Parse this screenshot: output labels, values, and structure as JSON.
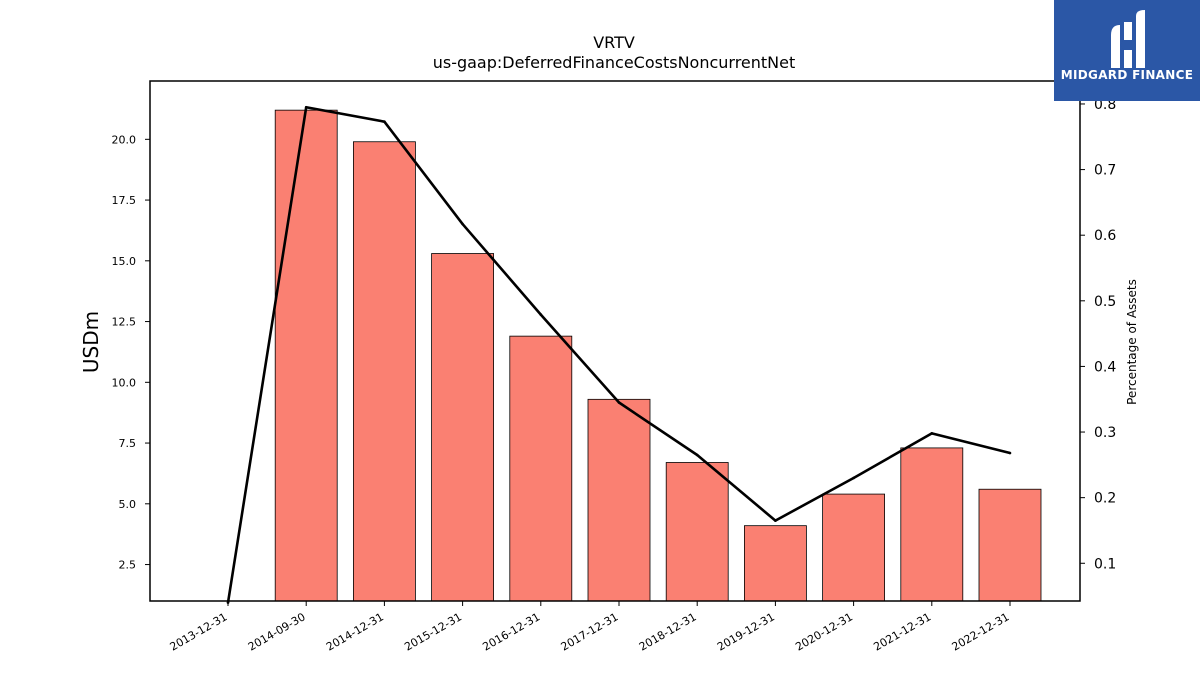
{
  "logo": {
    "text": "MIDGARD FINANCE",
    "background": "#2b57a6"
  },
  "chart_data": {
    "type": "bar",
    "title": "VRTV",
    "subtitle": "us-gaap:DeferredFinanceCostsNoncurrentNet",
    "ylabel": "USDm",
    "y2label": "Percentage of Assets",
    "categories": [
      "2013-12-31",
      "2014-09-30",
      "2014-12-31",
      "2015-12-31",
      "2016-12-31",
      "2017-12-31",
      "2018-12-31",
      "2019-12-31",
      "2020-12-31",
      "2021-12-31",
      "2022-12-31"
    ],
    "series": [
      {
        "axis": "left",
        "kind": "bar",
        "color": "#fa8072",
        "values": [
          null,
          21.2,
          19.9,
          15.3,
          11.9,
          9.3,
          6.7,
          4.1,
          5.4,
          7.3,
          5.6
        ]
      },
      {
        "axis": "right",
        "kind": "line",
        "color": "#000000",
        "values": [
          0.04,
          0.795,
          0.773,
          0.617,
          0.479,
          0.345,
          0.265,
          0.165,
          0.23,
          0.298,
          0.268
        ]
      }
    ],
    "ylim": [
      1.0,
      22.4
    ],
    "y2lim": [
      0.0425,
      0.835
    ],
    "yticks": [
      "2.5",
      "5.0",
      "7.5",
      "10.0",
      "12.5",
      "15.0",
      "17.5",
      "20.0"
    ],
    "y2ticks": [
      "0.1",
      "0.2",
      "0.3",
      "0.4",
      "0.5",
      "0.6",
      "0.7",
      "0.8"
    ],
    "grid": false
  }
}
